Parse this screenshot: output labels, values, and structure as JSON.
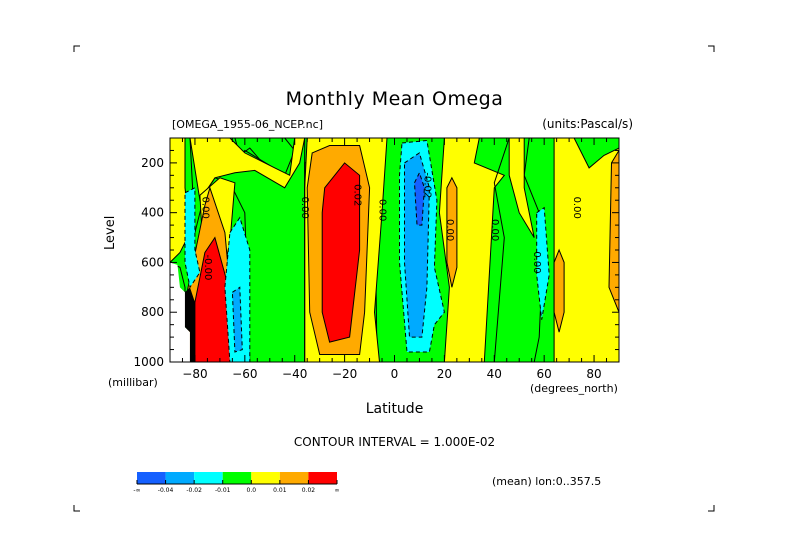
{
  "chart_data": {
    "type": "heatmap",
    "subtype": "filled-contour",
    "title": "Monthly Mean Omega",
    "subtitle_left": "[OMEGA_1955-06_NCEP.nc]",
    "subtitle_right": "(units:Pascal/s)",
    "xlabel": "Latitude",
    "xunits": "(degrees_north)",
    "ylabel": "Level",
    "yunits": "(millibar)",
    "xlim": [
      -90,
      90
    ],
    "ylim": [
      1000,
      100
    ],
    "x_ticks": [
      -80,
      -60,
      -40,
      -20,
      0,
      20,
      40,
      60,
      80
    ],
    "x_tick_labels": [
      "-80",
      "-60",
      "-40",
      "-20",
      "0",
      "20",
      "40",
      "60",
      "80"
    ],
    "y_ticks": [
      200,
      400,
      600,
      800,
      1000
    ],
    "y_tick_labels": [
      "200",
      "400",
      "600",
      "800",
      "1000"
    ],
    "contour_interval_text": "CONTOUR INTERVAL = 1.000E-02",
    "mean_note": "(mean) lon:0..357.5",
    "contour_labels": [
      {
        "text": "0.00",
        "lat": -77,
        "lev": 380
      },
      {
        "text": "-0.00",
        "lat": -76,
        "lev": 620
      },
      {
        "text": "0.00",
        "lat": -37,
        "lev": 380
      },
      {
        "text": "0.02",
        "lat": -16,
        "lev": 330
      },
      {
        "text": "0.00",
        "lat": -6,
        "lev": 390
      },
      {
        "text": "-0.02",
        "lat": 12,
        "lev": 290
      },
      {
        "text": "0.00",
        "lat": 21,
        "lev": 470
      },
      {
        "text": "0.00",
        "lat": 39,
        "lev": 470
      },
      {
        "text": "0.00",
        "lat": 56,
        "lev": 600
      },
      {
        "text": "0.00",
        "lat": 72,
        "lev": 380
      }
    ],
    "colorbar": {
      "levels": [
        "-∞",
        "-0.04",
        "-0.02",
        "-0.01",
        "0.0",
        "0.01",
        "0.02",
        "∞"
      ],
      "colors": [
        "#1560ff",
        "#00aaff",
        "#00ffff",
        "#00ff00",
        "#ffff00",
        "#ffaa00",
        "#ff0000"
      ]
    },
    "regions": [
      {
        "value_class": 3,
        "desc": "green negative small background"
      },
      {
        "value_class": 4,
        "desc": "yellow weak positive"
      }
    ],
    "background_color": "#00ee00",
    "missing_color": "#ffffff"
  }
}
